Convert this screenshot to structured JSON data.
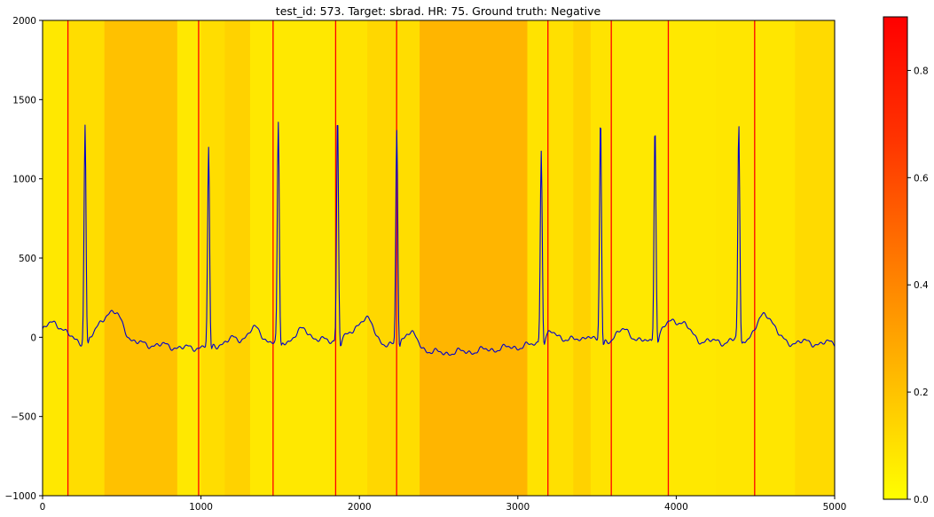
{
  "chart_data": {
    "type": "line",
    "title": "test_id: 573. Target: sbrad. HR: 75. Ground truth: Negative",
    "xlim": [
      0,
      5000
    ],
    "ylim": [
      -1000,
      2000
    ],
    "x_ticks": [
      0,
      1000,
      2000,
      3000,
      4000,
      5000
    ],
    "x_tick_labels": [
      "0",
      "1000",
      "2000",
      "3000",
      "4000",
      "5000"
    ],
    "y_ticks": [
      -1000,
      -500,
      0,
      500,
      1000,
      1500,
      2000
    ],
    "y_tick_labels": [
      "−1000",
      "−500",
      "0",
      "500",
      "1000",
      "1500",
      "2000"
    ],
    "grid": false,
    "line_color": "#0000cc",
    "ecg_series": {
      "baseline": [
        [
          0,
          -30
        ],
        [
          120,
          -30
        ],
        [
          150,
          -30
        ],
        [
          200,
          -40
        ],
        [
          400,
          -30
        ],
        [
          600,
          -40
        ],
        [
          800,
          -55
        ],
        [
          900,
          -70
        ],
        [
          1000,
          -60
        ],
        [
          1100,
          -50
        ],
        [
          1200,
          -10
        ],
        [
          1300,
          -35
        ],
        [
          1400,
          -40
        ],
        [
          1500,
          -30
        ],
        [
          1600,
          -25
        ],
        [
          1700,
          -30
        ],
        [
          1800,
          -20
        ],
        [
          1900,
          -25
        ],
        [
          2000,
          -30
        ],
        [
          2100,
          -45
        ],
        [
          2200,
          -60
        ],
        [
          2300,
          -40
        ],
        [
          2400,
          -80
        ],
        [
          2500,
          -100
        ],
        [
          2600,
          -95
        ],
        [
          2700,
          -90
        ],
        [
          2800,
          -80
        ],
        [
          2900,
          -70
        ],
        [
          3000,
          -60
        ],
        [
          3100,
          -50
        ],
        [
          3200,
          -40
        ],
        [
          3300,
          -10
        ],
        [
          3400,
          -25
        ],
        [
          3500,
          -25
        ],
        [
          3600,
          -20
        ],
        [
          3700,
          -50
        ],
        [
          3800,
          -30
        ],
        [
          3900,
          -40
        ],
        [
          4000,
          -30
        ],
        [
          4100,
          -25
        ],
        [
          4200,
          -25
        ],
        [
          4300,
          -30
        ],
        [
          4400,
          -10
        ],
        [
          4500,
          -20
        ],
        [
          4600,
          -20
        ],
        [
          4700,
          -35
        ],
        [
          4800,
          -30
        ],
        [
          4900,
          -40
        ],
        [
          5000,
          -35
        ]
      ],
      "p_waves": [
        [
          70,
          120,
          70
        ],
        [
          400,
          150,
          55
        ],
        [
          1990,
          80,
          50
        ],
        [
          3440,
          45,
          22
        ],
        [
          3960,
          120,
          55
        ],
        [
          4565,
          170,
          50
        ]
      ],
      "t_waves": [
        [
          480,
          110,
          45
        ],
        [
          1340,
          90,
          45
        ],
        [
          1650,
          75,
          45
        ],
        [
          2060,
          110,
          45
        ],
        [
          2320,
          75,
          45
        ],
        [
          3205,
          60,
          45
        ],
        [
          3680,
          90,
          45
        ],
        [
          4050,
          80,
          45
        ]
      ],
      "r_peaks": [
        [
          268,
          1340
        ],
        [
          1048,
          1180
        ],
        [
          1488,
          1340
        ],
        [
          1862,
          1420
        ],
        [
          2236,
          1300
        ],
        [
          3148,
          1170
        ],
        [
          3522,
          1390
        ],
        [
          3866,
          1340
        ],
        [
          4395,
          1340
        ]
      ]
    },
    "markers": {
      "color": "#ff0000",
      "x": [
        160,
        985,
        1455,
        1850,
        2235,
        3190,
        3590,
        3950,
        4495
      ]
    },
    "background_attention": {
      "min_color": "#ffff00",
      "mid_color": "#ffaa00",
      "segments": [
        [
          0,
          160,
          0.08
        ],
        [
          160,
          390,
          0.12
        ],
        [
          390,
          850,
          0.22
        ],
        [
          850,
          1000,
          0.08
        ],
        [
          1000,
          1150,
          0.12
        ],
        [
          1150,
          1310,
          0.16
        ],
        [
          1310,
          1450,
          0.08
        ],
        [
          1450,
          1850,
          0.08
        ],
        [
          1850,
          2050,
          0.1
        ],
        [
          2050,
          2240,
          0.14
        ],
        [
          2240,
          2380,
          0.12
        ],
        [
          2380,
          3060,
          0.26
        ],
        [
          3060,
          3190,
          0.1
        ],
        [
          3190,
          3350,
          0.11
        ],
        [
          3350,
          3460,
          0.16
        ],
        [
          3460,
          3590,
          0.1
        ],
        [
          3590,
          3850,
          0.08
        ],
        [
          3850,
          4250,
          0.08
        ],
        [
          4250,
          4500,
          0.09
        ],
        [
          4500,
          4750,
          0.09
        ],
        [
          4750,
          5000,
          0.13
        ]
      ]
    },
    "colorbar": {
      "min": 0.0,
      "max": 0.9,
      "ticks": [
        0.0,
        0.2,
        0.4,
        0.6,
        0.8
      ],
      "tick_labels": [
        "0.0",
        "0.2",
        "0.4",
        "0.6",
        "0.8"
      ],
      "stops": [
        "#ffff00",
        "#ffbb00",
        "#ff7700",
        "#ff3300",
        "#ff0000"
      ]
    }
  }
}
